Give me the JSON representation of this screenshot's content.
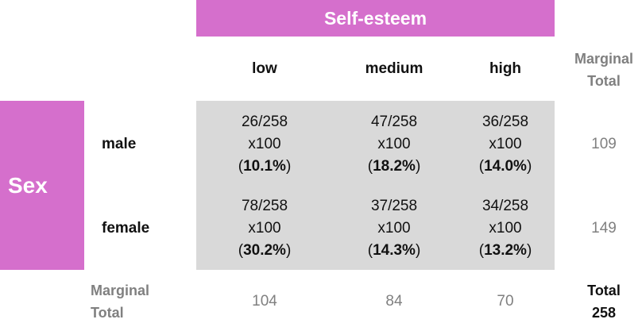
{
  "column_variable": "Self-esteem",
  "row_variable": "Sex",
  "columns": [
    "low",
    "medium",
    "high"
  ],
  "rows": [
    {
      "label": "male",
      "cells": [
        {
          "fraction": "26/258",
          "multiplier": "x100",
          "percent": "10.1%"
        },
        {
          "fraction": "47/258",
          "multiplier": "x100",
          "percent": "18.2%"
        },
        {
          "fraction": "36/258",
          "multiplier": "x100",
          "percent": "14.0%"
        }
      ],
      "marginal_total": "109"
    },
    {
      "label": "female",
      "cells": [
        {
          "fraction": "78/258",
          "multiplier": "x100",
          "percent": "30.2%"
        },
        {
          "fraction": "37/258",
          "multiplier": "x100",
          "percent": "14.3%"
        },
        {
          "fraction": "34/258",
          "multiplier": "x100",
          "percent": "13.2%"
        }
      ],
      "marginal_total": "149"
    }
  ],
  "marginal_total_label": {
    "line1": "Marginal",
    "line2": "Total"
  },
  "column_marginal_totals": [
    "104",
    "84",
    "70"
  ],
  "grand_total": {
    "label": "Total",
    "value": "258"
  },
  "colors": {
    "band": "#d56fcc",
    "shade": "#d9d9d9",
    "muted_text": "#808080"
  }
}
